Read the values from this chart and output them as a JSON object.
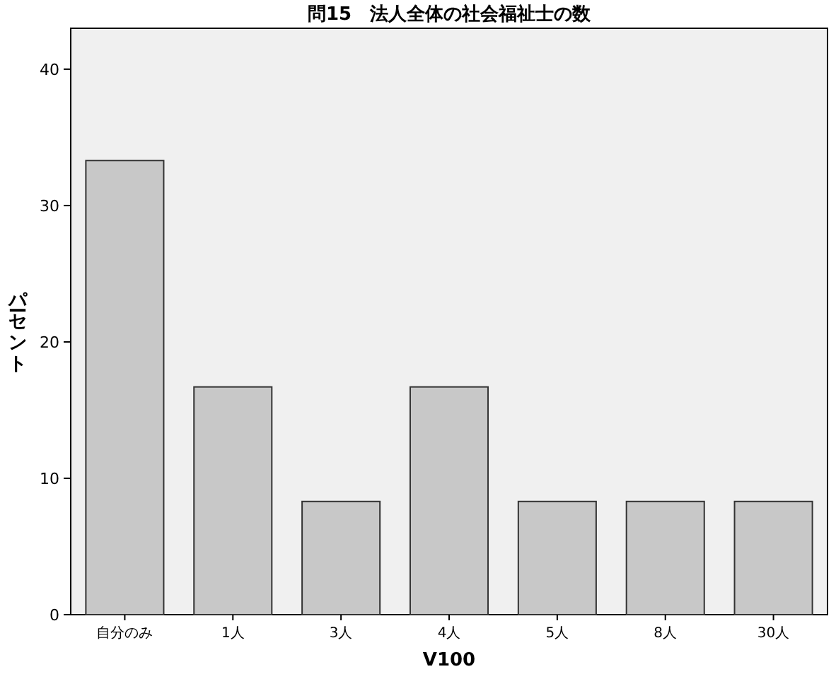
{
  "chart_data": {
    "type": "bar",
    "title": "問15　法人全体の社会福祉士の数",
    "xlabel": "V100",
    "ylabel": "パーセント",
    "categories": [
      "自分のみ",
      "1人",
      "3人",
      "4人",
      "5人",
      "8人",
      "30人"
    ],
    "values": [
      33.3,
      16.7,
      8.3,
      16.7,
      8.3,
      8.3,
      8.3
    ],
    "color": "#c8c8c8",
    "ylim": [
      0,
      43
    ],
    "yticks": [
      0,
      10,
      20,
      30,
      40
    ]
  }
}
